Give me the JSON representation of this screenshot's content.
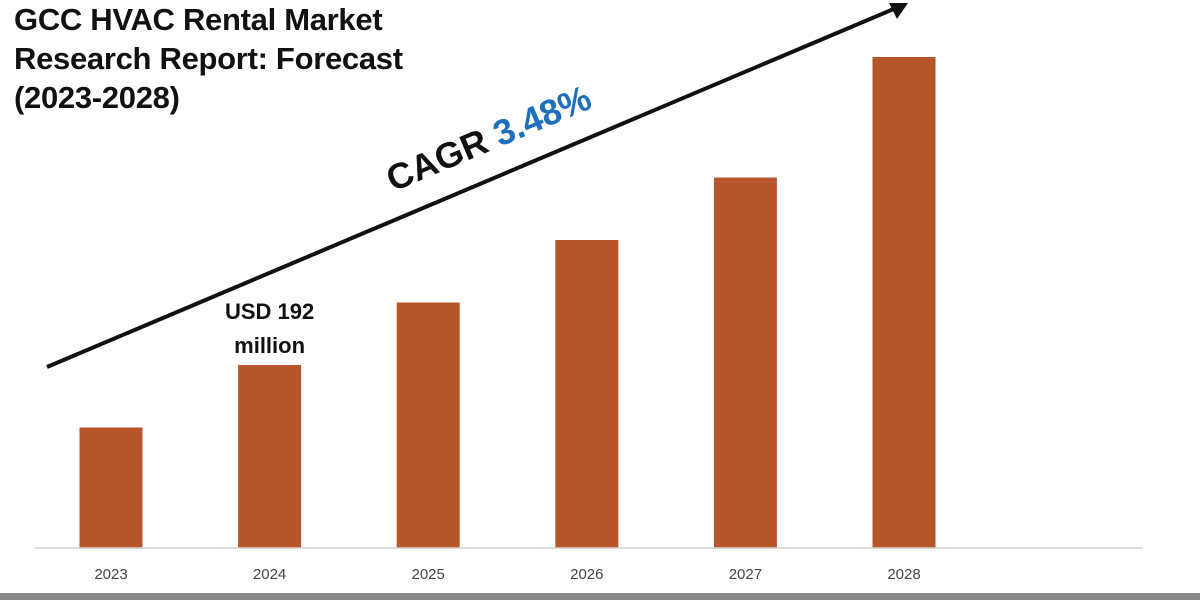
{
  "title_lines": [
    "GCC HVAC Rental Market",
    "Research Report: Forecast",
    "(2023-2028)"
  ],
  "cagr": {
    "prefix": "CAGR",
    "value": "3.48%",
    "prefix_color": "#111111",
    "value_color": "#1f6fbf"
  },
  "annotation": {
    "lines": [
      "USD 192",
      "million"
    ],
    "target_category": "2024"
  },
  "colors": {
    "bar": "#b8562b",
    "axis": "#d0d0d0",
    "arrow": "#111111",
    "tick_text": "#444444"
  },
  "chart_data": {
    "type": "bar",
    "title": "GCC HVAC Rental Market Research Report: Forecast (2023-2028)",
    "categories": [
      "2023",
      "2024",
      "2025",
      "2026",
      "2027",
      "2028"
    ],
    "values": [
      27,
      41,
      55,
      69,
      83,
      110
    ],
    "ylim": [
      0,
      110
    ],
    "xlabel": "",
    "ylabel": "",
    "grid": false,
    "legend": "none",
    "annotations": [
      "USD 192 million",
      "CAGR 3.48%"
    ]
  }
}
